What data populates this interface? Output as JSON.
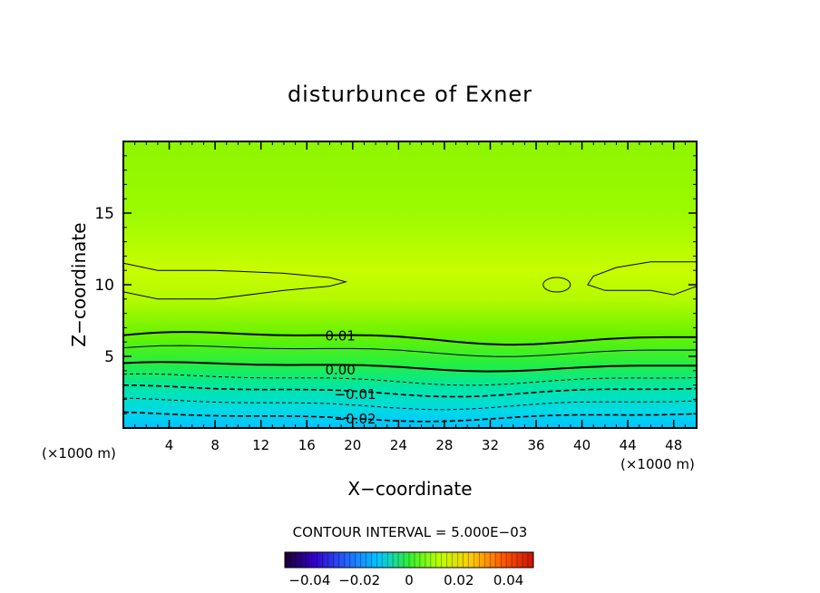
{
  "chart_data": {
    "type": "heatmap",
    "title": "disturbunce of Exner",
    "xlabel": "X−coordinate",
    "ylabel": "Z−coordinate",
    "x_unit_left": "(×1000 m)",
    "x_unit_right": "(×1000 m)",
    "xlim": [
      0,
      50
    ],
    "ylim": [
      0,
      20
    ],
    "x_ticks": [
      4,
      8,
      12,
      16,
      20,
      24,
      28,
      32,
      36,
      40,
      44,
      48
    ],
    "x_tick_labels": [
      "4",
      "8",
      "12",
      "16",
      "20",
      "24",
      "28",
      "32",
      "36",
      "40",
      "44",
      "48"
    ],
    "y_ticks": [
      5,
      10,
      15
    ],
    "y_tick_labels": [
      "5",
      "10",
      "15"
    ],
    "contour_interval_label": "CONTOUR INTERVAL = 5.000E−03",
    "contour_interval": 0.005,
    "contour_labels": [
      {
        "text": "0.01",
        "x": 17.6,
        "z": 6.5
      },
      {
        "text": "0.00",
        "x": 17.6,
        "z": 4.1
      },
      {
        "text": "−0.01",
        "x": 18.4,
        "z": 2.4
      },
      {
        "text": "−0.02",
        "x": 18.4,
        "z": 0.7
      }
    ],
    "value_range": [
      -0.05,
      0.05
    ],
    "colorbar": {
      "min": -0.05,
      "max": 0.05,
      "ticks": [
        -0.04,
        -0.02,
        0,
        0.02,
        0.04
      ],
      "tick_labels": [
        "−0.04",
        "−0.02",
        "0",
        "0.02",
        "0.04"
      ]
    },
    "colors": {
      "field_top": "#99ff00",
      "field_mid": "#ccff00",
      "field_bottom": "#00ccff"
    }
  }
}
